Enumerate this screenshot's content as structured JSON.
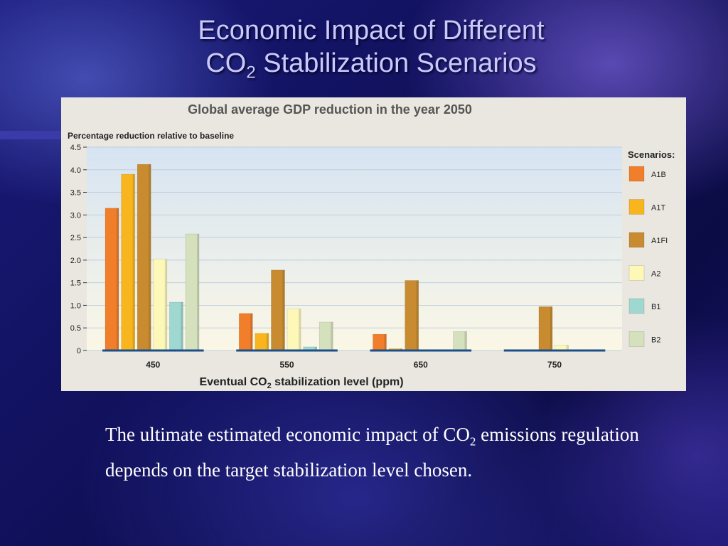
{
  "slide": {
    "title_line1": "Economic Impact of Different",
    "title_line2_prefix": "CO",
    "title_line2_sub": "2",
    "title_line2_suffix": " Stabilization Scenarios",
    "caption_part1": "The ultimate estimated economic impact of CO",
    "caption_sub": "2",
    "caption_part2": " emissions regulation depends on the target stabilization level chosen."
  },
  "chart_data": {
    "type": "bar",
    "title": "Global average GDP reduction in the year 2050",
    "ylabel": "Percentage reduction relative to baseline",
    "xlabel_prefix": "Eventual CO",
    "xlabel_sub": "2",
    "xlabel_suffix": " stabilization level (ppm)",
    "legend_title": "Scenarios:",
    "legend_position": "right",
    "categories": [
      "450",
      "550",
      "650",
      "750"
    ],
    "ylim": [
      0,
      4.5
    ],
    "yticks": [
      "4.5",
      "4.0",
      "3.5",
      "3.0",
      "2.5",
      "2.0",
      "1.5",
      "1.0",
      "0.5",
      "0"
    ],
    "grid": true,
    "series": [
      {
        "name": "A1B",
        "color": "#f07e2a",
        "values": [
          3.15,
          0.82,
          0.36,
          0
        ]
      },
      {
        "name": "A1T",
        "color": "#f8b51d",
        "values": [
          3.9,
          0.38,
          0.04,
          0
        ]
      },
      {
        "name": "A1FI",
        "color": "#c88b30",
        "values": [
          4.12,
          1.78,
          1.55,
          0.97
        ]
      },
      {
        "name": "A2",
        "color": "#fdf8b8",
        "values": [
          2.02,
          0.92,
          0,
          0.12
        ]
      },
      {
        "name": "B1",
        "color": "#9fd8d0",
        "values": [
          1.07,
          0.08,
          0,
          0
        ]
      },
      {
        "name": "B2",
        "color": "#d5e0bd",
        "values": [
          2.58,
          0.63,
          0.42,
          0
        ]
      }
    ]
  }
}
